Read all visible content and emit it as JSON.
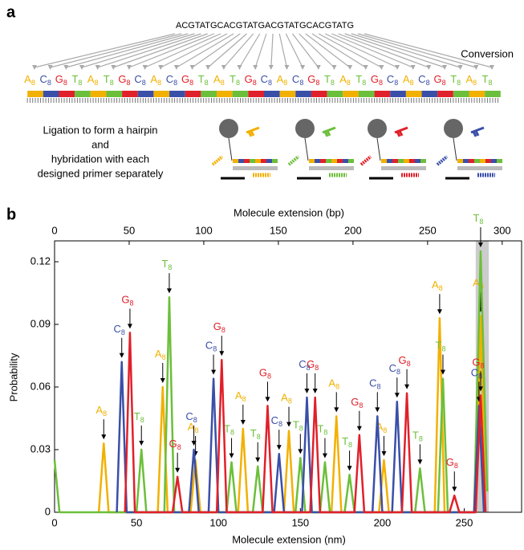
{
  "panel_a": {
    "label": "a",
    "sequence": "ACGTATGCACGTATGACGTATGCACGTATG",
    "conversion": "Conversion",
    "subscript": "8",
    "converted": [
      "A",
      "C",
      "G",
      "T",
      "A",
      "T",
      "G",
      "C",
      "A",
      "C",
      "G",
      "T",
      "A",
      "T",
      "G",
      "C",
      "A",
      "C",
      "G",
      "T",
      "A",
      "T",
      "G",
      "C",
      "A",
      "C",
      "G",
      "T",
      "A",
      "T"
    ],
    "ligation_text": [
      "Ligation to form a hairpin",
      "and",
      "hybridation with each",
      "designed primer separately"
    ]
  },
  "chart_data": {
    "type": "line",
    "panel_label": "b",
    "x_label": "Molecule extension (nm)",
    "x2_label": "Molecule extension (bp)",
    "y_label": "Probability",
    "xlim": [
      0,
      285
    ],
    "xticks": [
      0,
      50,
      100,
      150,
      200,
      250
    ],
    "x2lim": [
      0,
      313
    ],
    "x2ticks": [
      0,
      50,
      100,
      150,
      200,
      250,
      300
    ],
    "ylim": [
      0,
      0.13
    ],
    "yticks": [
      0,
      0.03,
      0.06,
      0.09,
      0.12
    ],
    "highlight": [
      257,
      265
    ],
    "subscript": "8",
    "series": [
      {
        "name": "A",
        "color": "#f2b000",
        "x": [
          27,
          30,
          33,
          63,
          66,
          69,
          83,
          86,
          89,
          112,
          115,
          118,
          140,
          143,
          146,
          169,
          172,
          175,
          198,
          201,
          204,
          232,
          235,
          238,
          257,
          260,
          263
        ],
        "values": [
          0,
          0.033,
          0,
          0,
          0.06,
          0,
          0,
          0.025,
          0,
          0,
          0.04,
          0,
          0,
          0.039,
          0,
          0,
          0.046,
          0,
          0,
          0.025,
          0,
          0,
          0.093,
          0,
          0,
          0.094,
          0
        ]
      },
      {
        "name": "T",
        "color": "#6cbf3a",
        "x": [
          0,
          3,
          50,
          53,
          56,
          67,
          70,
          73,
          105,
          108,
          111,
          121,
          124,
          127,
          147,
          150,
          153,
          162,
          165,
          168,
          177,
          180,
          183,
          220,
          223,
          226,
          234,
          237,
          240,
          256,
          260,
          264
        ],
        "values": [
          0.025,
          0,
          0,
          0.03,
          0,
          0,
          0.103,
          0,
          0,
          0.024,
          0,
          0,
          0.022,
          0,
          0,
          0.026,
          0,
          0,
          0.024,
          0,
          0,
          0.018,
          0,
          0,
          0.021,
          0,
          0,
          0.064,
          0,
          0,
          0.125,
          0.01
        ]
      },
      {
        "name": "C",
        "color": "#3a4fa8",
        "x": [
          38,
          41,
          44,
          82,
          85,
          88,
          94,
          97,
          100,
          134,
          137,
          140,
          151,
          154,
          157,
          194,
          197,
          200,
          206,
          209,
          212,
          256,
          259,
          262
        ],
        "values": [
          0,
          0.072,
          0,
          0,
          0.03,
          0,
          0,
          0.064,
          0,
          0,
          0.028,
          0,
          0,
          0.055,
          0,
          0,
          0.046,
          0,
          0,
          0.053,
          0,
          0,
          0.051,
          0
        ]
      },
      {
        "name": "G",
        "color": "#e0202a",
        "x": [
          43,
          46,
          49,
          72,
          75,
          78,
          99,
          102,
          105,
          127,
          130,
          133,
          156,
          159,
          162,
          183,
          186,
          189,
          212,
          215,
          218,
          241,
          244,
          247,
          257,
          260,
          263
        ],
        "values": [
          0,
          0.086,
          0,
          0,
          0.017,
          0,
          0,
          0.073,
          0,
          0,
          0.051,
          0,
          0,
          0.055,
          0,
          0,
          0.037,
          0,
          0,
          0.057,
          0,
          0,
          0.008,
          0,
          0,
          0.056,
          0
        ]
      }
    ]
  }
}
